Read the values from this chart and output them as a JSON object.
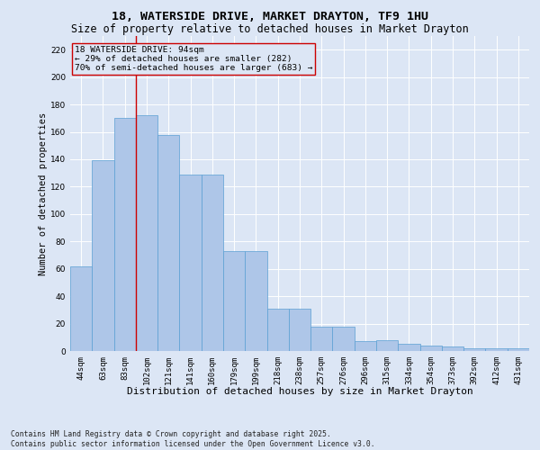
{
  "title_line1": "18, WATERSIDE DRIVE, MARKET DRAYTON, TF9 1HU",
  "title_line2": "Size of property relative to detached houses in Market Drayton",
  "xlabel": "Distribution of detached houses by size in Market Drayton",
  "ylabel": "Number of detached properties",
  "categories": [
    "44sqm",
    "63sqm",
    "83sqm",
    "102sqm",
    "121sqm",
    "141sqm",
    "160sqm",
    "179sqm",
    "199sqm",
    "218sqm",
    "238sqm",
    "257sqm",
    "276sqm",
    "296sqm",
    "315sqm",
    "334sqm",
    "354sqm",
    "373sqm",
    "392sqm",
    "412sqm",
    "431sqm"
  ],
  "values": [
    62,
    139,
    170,
    172,
    158,
    129,
    129,
    73,
    73,
    31,
    31,
    18,
    18,
    7,
    8,
    5,
    4,
    3,
    2,
    2,
    2
  ],
  "bar_color": "#aec6e8",
  "bar_edge_color": "#5a9fd4",
  "background_color": "#dce6f5",
  "grid_color": "#ffffff",
  "vline_x": 2.5,
  "vline_color": "#cc0000",
  "annotation_text": "18 WATERSIDE DRIVE: 94sqm\n← 29% of detached houses are smaller (282)\n70% of semi-detached houses are larger (683) →",
  "annotation_box_color": "#cc0000",
  "ylim": [
    0,
    230
  ],
  "yticks": [
    0,
    20,
    40,
    60,
    80,
    100,
    120,
    140,
    160,
    180,
    200,
    220
  ],
  "footnote": "Contains HM Land Registry data © Crown copyright and database right 2025.\nContains public sector information licensed under the Open Government Licence v3.0.",
  "title_fontsize": 9.5,
  "subtitle_fontsize": 8.5,
  "xlabel_fontsize": 8,
  "ylabel_fontsize": 7.5,
  "tick_fontsize": 6.5,
  "annotation_fontsize": 6.8,
  "footnote_fontsize": 5.8
}
